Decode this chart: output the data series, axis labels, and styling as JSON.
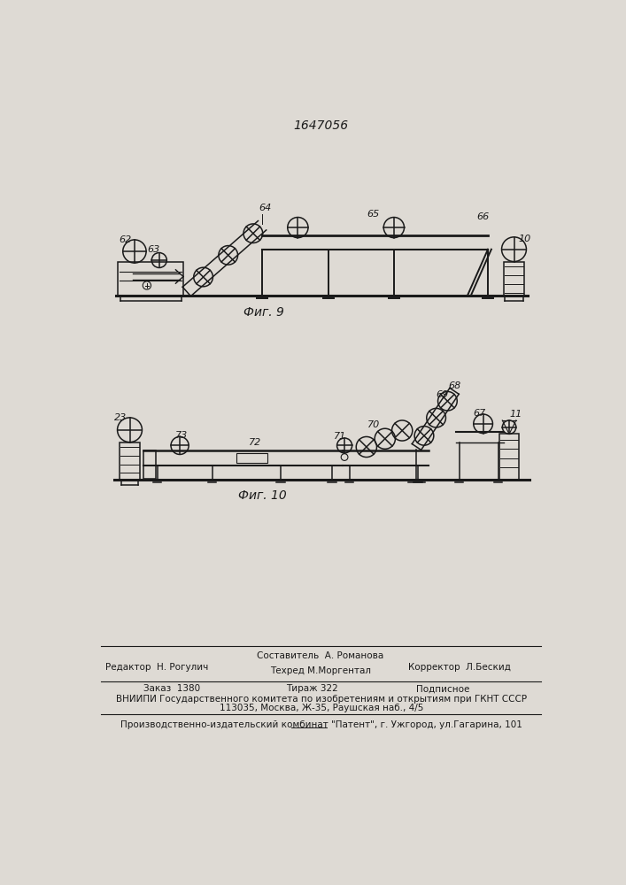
{
  "title": "1647056",
  "title_fontsize": 11,
  "bg_color": "#dedad4",
  "line_color": "#1a1a1a",
  "fig9_label": "Фиг. 9",
  "fig10_label": "Фиг. 10",
  "footer_line1_col1": "Редактор  Н. Рогулич",
  "footer_line1_col2": "Составитель  А. Романова",
  "footer_line2_col2": "Техред М.Моргентал",
  "footer_line2_col3": "Корректор  Л.Бескид",
  "footer_zakaz": "Заказ  1380",
  "footer_tirazh": "Тираж 322",
  "footer_podpisnoe": "Подписное",
  "footer_vniipи": "ВНИИПИ Государственного комитета по изобретениям и открытиям при ГКНТ СССР",
  "footer_address": "113035, Москва, Ж-35, Раушская наб., 4/5",
  "footer_patent": "Производственно-издательский комбинат \"Патент\", г. Ужгород, ул.Гагарина, 101"
}
